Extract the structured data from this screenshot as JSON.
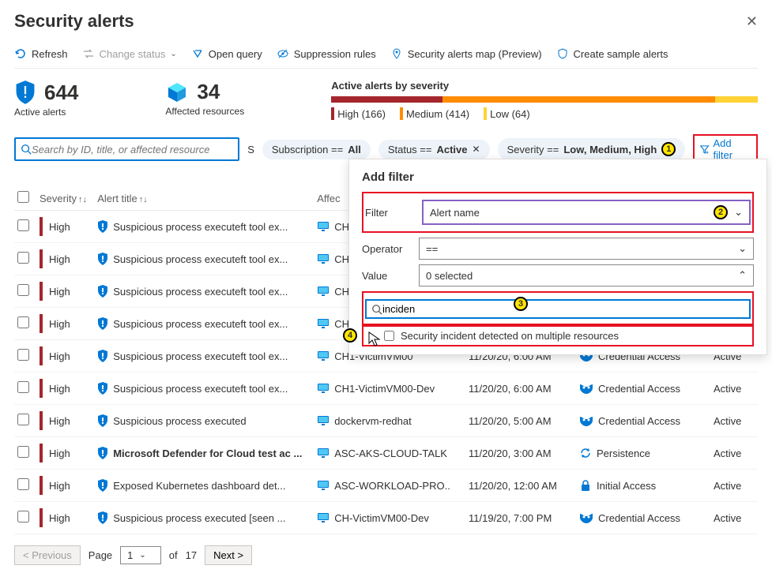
{
  "header": {
    "title": "Security alerts"
  },
  "toolbar": {
    "refresh": "Refresh",
    "change_status": "Change status",
    "open_query": "Open query",
    "suppression": "Suppression rules",
    "alerts_map": "Security alerts map (Preview)",
    "sample": "Create sample alerts"
  },
  "stats": {
    "active_count": "644",
    "active_label": "Active alerts",
    "affected_count": "34",
    "affected_label": "Affected resources"
  },
  "severity_summary": {
    "title": "Active alerts by severity",
    "high_label": "High (166)",
    "medium_label": "Medium (414)",
    "low_label": "Low (64)",
    "high_pct": 26,
    "med_pct": 64,
    "low_pct": 10,
    "colors": {
      "high": "#a4262c",
      "medium": "#ff8c00",
      "low": "#ffd335"
    }
  },
  "filters": {
    "search_placeholder": "Search by ID, title, or affected resource",
    "truncated": "S",
    "subscription": {
      "label": "Subscription == ",
      "value": "All"
    },
    "status": {
      "label": "Status == ",
      "value": "Active"
    },
    "severity": {
      "label": "Severity == ",
      "value": "Low, Medium, High"
    },
    "add_filter": "Add filter"
  },
  "columns": {
    "severity": "Severity",
    "title": "Alert title",
    "resource": "Affec",
    "time": "",
    "tactic": "",
    "status": ""
  },
  "rows": [
    {
      "sev": "High",
      "title": "Suspicious process executeft tool ex...",
      "titleBold": false,
      "res": "CH",
      "time": "",
      "tactic": "",
      "status": ""
    },
    {
      "sev": "High",
      "title": "Suspicious process executeft tool ex...",
      "titleBold": false,
      "res": "CH",
      "time": "",
      "tactic": "",
      "status": ""
    },
    {
      "sev": "High",
      "title": "Suspicious process executeft tool ex...",
      "titleBold": false,
      "res": "CH",
      "time": "",
      "tactic": "",
      "status": ""
    },
    {
      "sev": "High",
      "title": "Suspicious process executeft tool ex...",
      "titleBold": false,
      "res": "CH",
      "time": "",
      "tactic": "",
      "status": ""
    },
    {
      "sev": "High",
      "title": "Suspicious process executeft tool ex...",
      "titleBold": false,
      "res": "CH1-VictimVM00",
      "time": "11/20/20, 6:00 AM",
      "tactic": "Credential Access",
      "tacticIcon": "mask",
      "status": "Active"
    },
    {
      "sev": "High",
      "title": "Suspicious process executeft tool ex...",
      "titleBold": false,
      "res": "CH1-VictimVM00-Dev",
      "time": "11/20/20, 6:00 AM",
      "tactic": "Credential Access",
      "tacticIcon": "mask",
      "status": "Active"
    },
    {
      "sev": "High",
      "title": "Suspicious process executed",
      "titleBold": false,
      "res": "dockervm-redhat",
      "time": "11/20/20, 5:00 AM",
      "tactic": "Credential Access",
      "tacticIcon": "mask",
      "status": "Active"
    },
    {
      "sev": "High",
      "title": "Microsoft Defender for Cloud test ac ...",
      "titleBold": true,
      "res": "ASC-AKS-CLOUD-TALK",
      "time": "11/20/20, 3:00 AM",
      "tactic": "Persistence",
      "tacticIcon": "cycle",
      "status": "Active"
    },
    {
      "sev": "High",
      "title": "Exposed Kubernetes dashboard det...",
      "titleBold": false,
      "res": "ASC-WORKLOAD-PRO...",
      "time": "11/20/20, 12:00 AM",
      "tactic": "Initial Access",
      "tacticIcon": "lock",
      "status": "Active"
    },
    {
      "sev": "High",
      "title": "Suspicious process executed [seen ...",
      "titleBold": false,
      "res": "CH-VictimVM00-Dev",
      "time": "11/19/20, 7:00 PM",
      "tactic": "Credential Access",
      "tacticIcon": "mask",
      "status": "Active"
    }
  ],
  "popup": {
    "title": "Add filter",
    "filter_label": "Filter",
    "filter_value": "Alert name",
    "operator_label": "Operator",
    "operator_value": "==",
    "value_label": "Value",
    "value_selected": "0 selected",
    "search_value": "inciden",
    "option": "Security incident detected on multiple resources"
  },
  "annotations": {
    "a1": "1",
    "a2": "2",
    "a3": "3",
    "a4": "4"
  },
  "pager": {
    "prev": "< Previous",
    "page_label": "Page",
    "page": "1",
    "of": "of",
    "total": "17",
    "next": "Next >"
  }
}
